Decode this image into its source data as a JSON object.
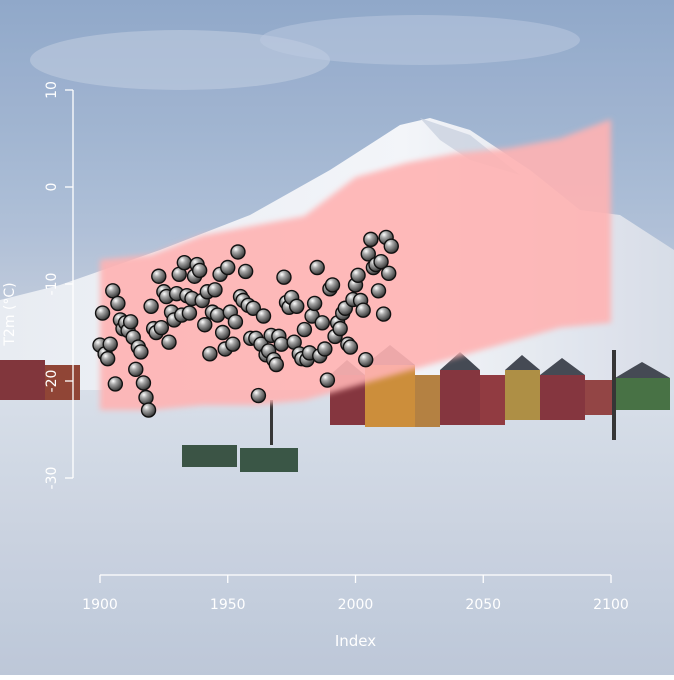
{
  "chart_data": {
    "type": "scatter",
    "title": "",
    "xlabel": "Index",
    "ylabel": "T2m  (°C)",
    "xlim": [
      1900,
      2100
    ],
    "ylim": [
      -30,
      10
    ],
    "x_ticks": [
      "1900",
      "1950",
      "2000",
      "2050",
      "2100"
    ],
    "y_ticks": [
      "10",
      "0",
      "-10",
      "-20",
      "-30"
    ],
    "grid": false,
    "legend": "none",
    "background": "photograph of snowy Arctic settlement with mountain and colored houses",
    "band": {
      "name": "",
      "color": "#ffb3b3",
      "x": [
        1900,
        1920,
        1940,
        1960,
        1980,
        2000,
        2020,
        2040,
        2060,
        2080,
        2100
      ],
      "lower": [
        -23,
        -23,
        -22.5,
        -22.5,
        -22,
        -20.5,
        -19,
        -17.5,
        -16,
        -14.5,
        -14
      ],
      "upper": [
        -7.5,
        -7,
        -5,
        -4,
        -3,
        1,
        2.5,
        3.5,
        4,
        5,
        7
      ]
    },
    "series": [
      {
        "name": "",
        "marker_color": "#6e6e6e",
        "points": [
          [
            1900,
            -16.3
          ],
          [
            1901,
            -13.0
          ],
          [
            1902,
            -17.2
          ],
          [
            1903,
            -17.7
          ],
          [
            1904,
            -16.2
          ],
          [
            1905,
            -10.7
          ],
          [
            1906,
            -20.3
          ],
          [
            1907,
            -12.0
          ],
          [
            1908,
            -13.7
          ],
          [
            1909,
            -14.6
          ],
          [
            1910,
            -14.0
          ],
          [
            1911,
            -14.8
          ],
          [
            1912,
            -13.9
          ],
          [
            1913,
            -15.5
          ],
          [
            1914,
            -18.8
          ],
          [
            1915,
            -16.5
          ],
          [
            1916,
            -17.0
          ],
          [
            1917,
            -20.2
          ],
          [
            1918,
            -21.7
          ],
          [
            1919,
            -23.0
          ],
          [
            1920,
            -12.3
          ],
          [
            1921,
            -14.6
          ],
          [
            1922,
            -15.0
          ],
          [
            1923,
            -9.2
          ],
          [
            1924,
            -14.5
          ],
          [
            1925,
            -10.8
          ],
          [
            1926,
            -11.3
          ],
          [
            1927,
            -16.0
          ],
          [
            1928,
            -12.9
          ],
          [
            1929,
            -13.7
          ],
          [
            1930,
            -11.0
          ],
          [
            1931,
            -9.0
          ],
          [
            1932,
            -13.2
          ],
          [
            1933,
            -7.8
          ],
          [
            1934,
            -11.2
          ],
          [
            1935,
            -13.0
          ],
          [
            1936,
            -11.5
          ],
          [
            1937,
            -9.2
          ],
          [
            1938,
            -8.0
          ],
          [
            1939,
            -8.6
          ],
          [
            1940,
            -11.7
          ],
          [
            1941,
            -14.2
          ],
          [
            1942,
            -10.8
          ],
          [
            1943,
            -17.2
          ],
          [
            1944,
            -12.9
          ],
          [
            1945,
            -10.6
          ],
          [
            1946,
            -13.2
          ],
          [
            1947,
            -9.0
          ],
          [
            1948,
            -15.0
          ],
          [
            1949,
            -16.7
          ],
          [
            1950,
            -8.3
          ],
          [
            1951,
            -12.9
          ],
          [
            1952,
            -16.2
          ],
          [
            1953,
            -13.9
          ],
          [
            1954,
            -6.7
          ],
          [
            1955,
            -11.3
          ],
          [
            1956,
            -11.7
          ],
          [
            1957,
            -8.7
          ],
          [
            1958,
            -12.2
          ],
          [
            1959,
            -15.6
          ],
          [
            1960,
            -12.5
          ],
          [
            1961,
            -15.6
          ],
          [
            1962,
            -21.5
          ],
          [
            1963,
            -16.2
          ],
          [
            1964,
            -13.3
          ],
          [
            1965,
            -17.3
          ],
          [
            1966,
            -16.9
          ],
          [
            1967,
            -15.3
          ],
          [
            1968,
            -17.8
          ],
          [
            1969,
            -18.3
          ],
          [
            1970,
            -15.4
          ],
          [
            1971,
            -16.2
          ],
          [
            1972,
            -9.3
          ],
          [
            1973,
            -11.9
          ],
          [
            1974,
            -12.4
          ],
          [
            1975,
            -11.4
          ],
          [
            1976,
            -16.0
          ],
          [
            1977,
            -12.3
          ],
          [
            1978,
            -17.2
          ],
          [
            1979,
            -17.7
          ],
          [
            1980,
            -14.7
          ],
          [
            1981,
            -17.8
          ],
          [
            1982,
            -17.1
          ],
          [
            1983,
            -13.3
          ],
          [
            1984,
            -12.0
          ],
          [
            1985,
            -8.3
          ],
          [
            1986,
            -17.4
          ],
          [
            1987,
            -14.0
          ],
          [
            1988,
            -16.7
          ],
          [
            1989,
            -19.9
          ],
          [
            1990,
            -10.5
          ],
          [
            1991,
            -10.1
          ],
          [
            1992,
            -15.4
          ],
          [
            1993,
            -14.0
          ],
          [
            1994,
            -14.6
          ],
          [
            1995,
            -13.0
          ],
          [
            1996,
            -12.5
          ],
          [
            1997,
            -16.2
          ],
          [
            1998,
            -16.5
          ],
          [
            1999,
            -11.6
          ],
          [
            2000,
            -10.1
          ],
          [
            2001,
            -9.1
          ],
          [
            2002,
            -11.7
          ],
          [
            2003,
            -12.7
          ],
          [
            2004,
            -17.8
          ],
          [
            2005,
            -6.9
          ],
          [
            2006,
            -5.4
          ],
          [
            2007,
            -8.3
          ],
          [
            2008,
            -8.0
          ],
          [
            2009,
            -10.7
          ],
          [
            2010,
            -7.7
          ],
          [
            2011,
            -13.1
          ],
          [
            2012,
            -5.2
          ],
          [
            2013,
            -8.9
          ],
          [
            2014,
            -6.1
          ]
        ]
      }
    ]
  }
}
